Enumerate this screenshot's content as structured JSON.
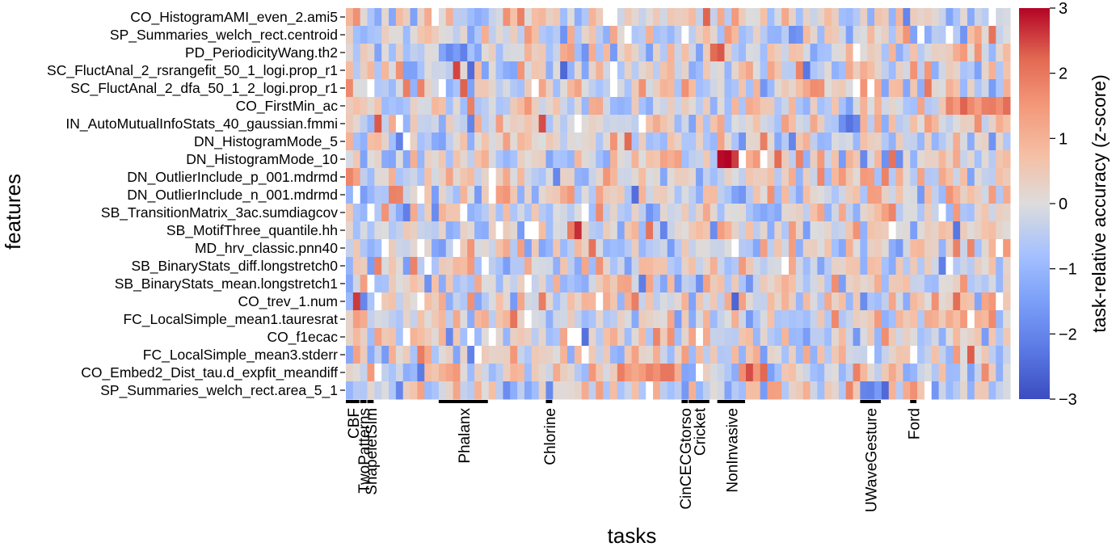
{
  "chart_data": {
    "type": "heatmap",
    "xlabel": "tasks",
    "ylabel": "features",
    "colorbar": {
      "label": "task-relative accuracy (z-score)",
      "range": [
        -3,
        3
      ],
      "ticks": [
        "3",
        "2",
        "1",
        "0",
        "−1",
        "−2",
        "−3"
      ],
      "colormap": "coolwarm",
      "colors": {
        "low": "#3b4cc0",
        "mid": "#dddddd",
        "high": "#b40426"
      }
    },
    "n_tasks": 93,
    "features": [
      "CO_HistogramAMI_even_2.ami5",
      "SP_Summaries_welch_rect.centroid",
      "PD_PeriodicityWang.th2",
      "SC_FluctAnal_2_rsrangefit_50_1_logi.prop_r1",
      "SC_FluctAnal_2_dfa_50_1_2_logi.prop_r1",
      "CO_FirstMin_ac",
      "IN_AutoMutualInfoStats_40_gaussian.fmmi",
      "DN_HistogramMode_5",
      "DN_HistogramMode_10",
      "DN_OutlierInclude_p_001.mdrmd",
      "DN_OutlierInclude_n_001.mdrmd",
      "SB_TransitionMatrix_3ac.sumdiagcov",
      "SB_MotifThree_quantile.hh",
      "MD_hrv_classic.pnn40",
      "SB_BinaryStats_diff.longstretch0",
      "SB_BinaryStats_mean.longstretch1",
      "CO_trev_1.num",
      "FC_LocalSimple_mean1.tauresrat",
      "CO_f1ecac",
      "FC_LocalSimple_mean3.stderr",
      "CO_Embed2_Dist_tau.d_expfit_meandiff",
      "SP_Summaries_welch_rect.area_5_1"
    ],
    "task_groups": [
      {
        "label": "CBF",
        "start": 0,
        "end": 1
      },
      {
        "label": "TwoPatterns",
        "start": 2,
        "end": 2
      },
      {
        "label": "ShapeletSim",
        "start": 3,
        "end": 3
      },
      {
        "label": "Phalanx",
        "start": 13,
        "end": 19
      },
      {
        "label": "Chlorine",
        "start": 28,
        "end": 28
      },
      {
        "label": "CinCECGtorso",
        "start": 47,
        "end": 47
      },
      {
        "label": "Cricket",
        "start": 48,
        "end": 50
      },
      {
        "label": "NonInvasive",
        "start": 52,
        "end": 55
      },
      {
        "label": "UWaveGesture",
        "start": 72,
        "end": 74
      },
      {
        "label": "Ford",
        "start": 79,
        "end": 79
      }
    ],
    "values": [],
    "value_note": ""
  }
}
